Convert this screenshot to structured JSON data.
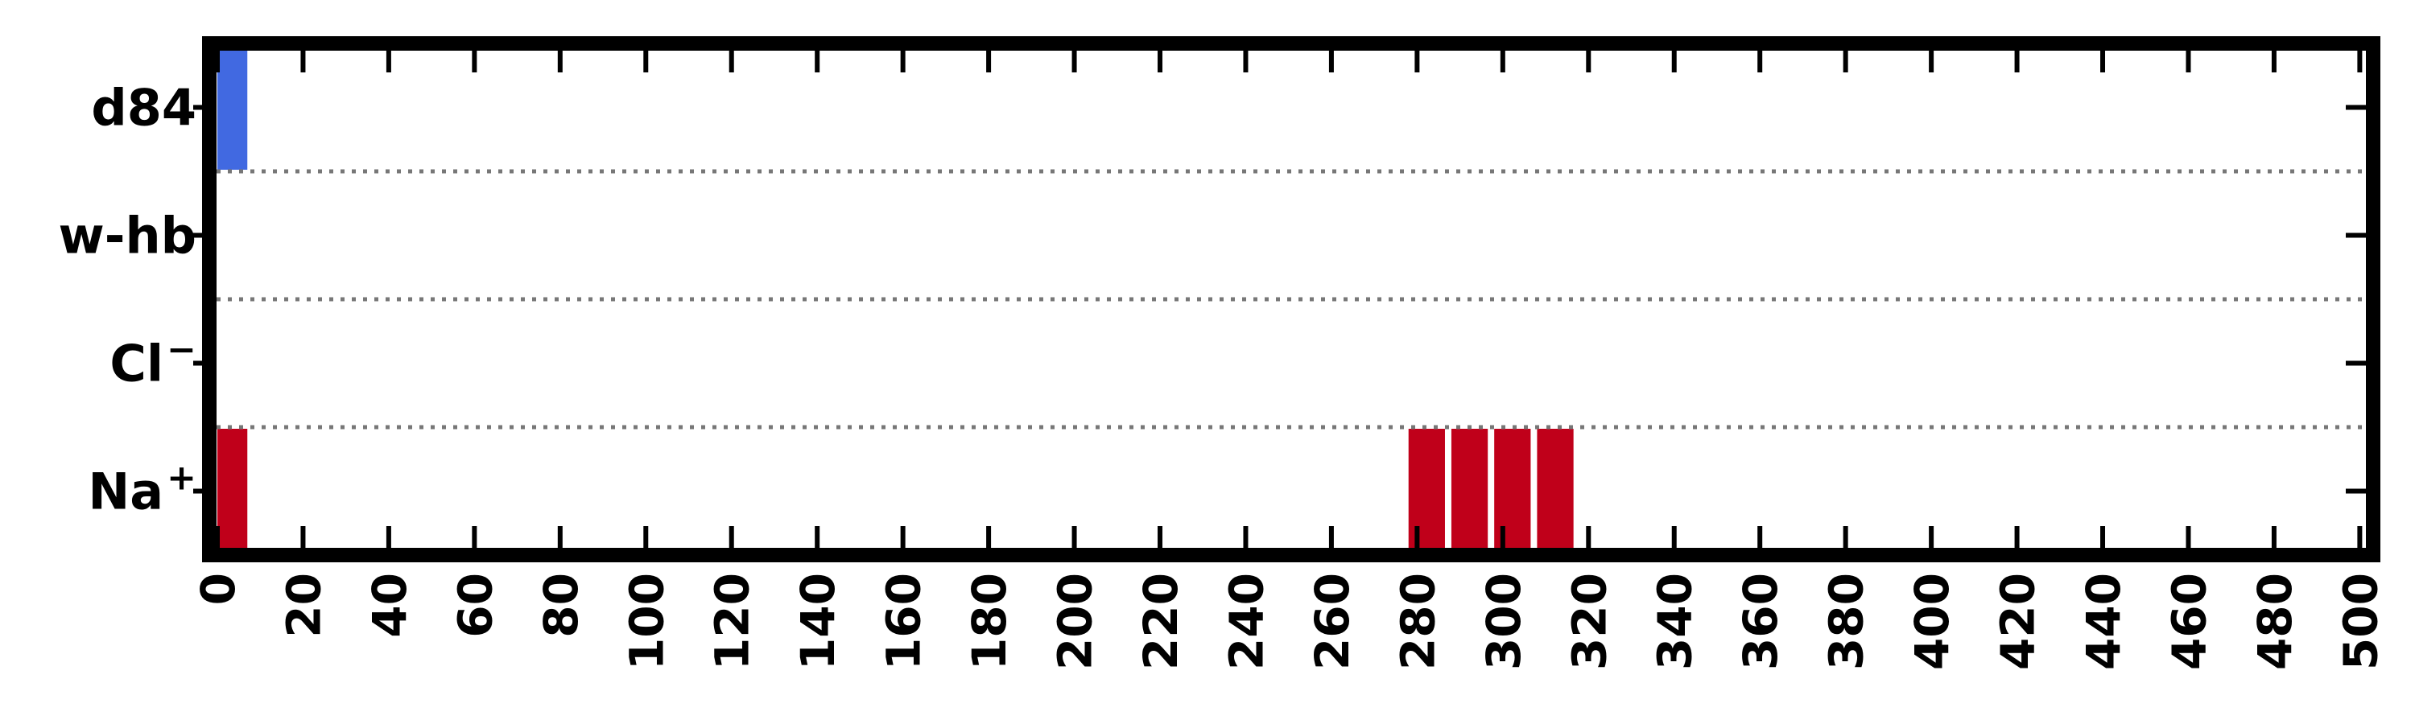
{
  "chart_data": {
    "type": "bar",
    "xlim": [
      0,
      505
    ],
    "xticks": [
      0,
      20,
      40,
      60,
      80,
      100,
      120,
      140,
      160,
      180,
      200,
      220,
      240,
      260,
      280,
      300,
      320,
      340,
      360,
      380,
      400,
      420,
      440,
      460,
      480,
      500
    ],
    "rows": [
      {
        "label": "d84",
        "color": "#4169e1",
        "bars": [
          {
            "x": 0,
            "width": 7
          }
        ]
      },
      {
        "label": "w-hb",
        "color": "#4169e1",
        "bars": []
      },
      {
        "label": "Cl",
        "label_sup": "−",
        "color": "#c0001a",
        "bars": []
      },
      {
        "label": "Na",
        "label_sup": "+",
        "color": "#c0001a",
        "bars": [
          {
            "x": 0,
            "width": 7
          },
          {
            "x": 278,
            "width": 8.5
          },
          {
            "x": 288,
            "width": 8.5
          },
          {
            "x": 298,
            "width": 8.5
          },
          {
            "x": 308,
            "width": 8.5
          }
        ]
      }
    ],
    "grid": "dotted row separators",
    "legend": "none"
  }
}
